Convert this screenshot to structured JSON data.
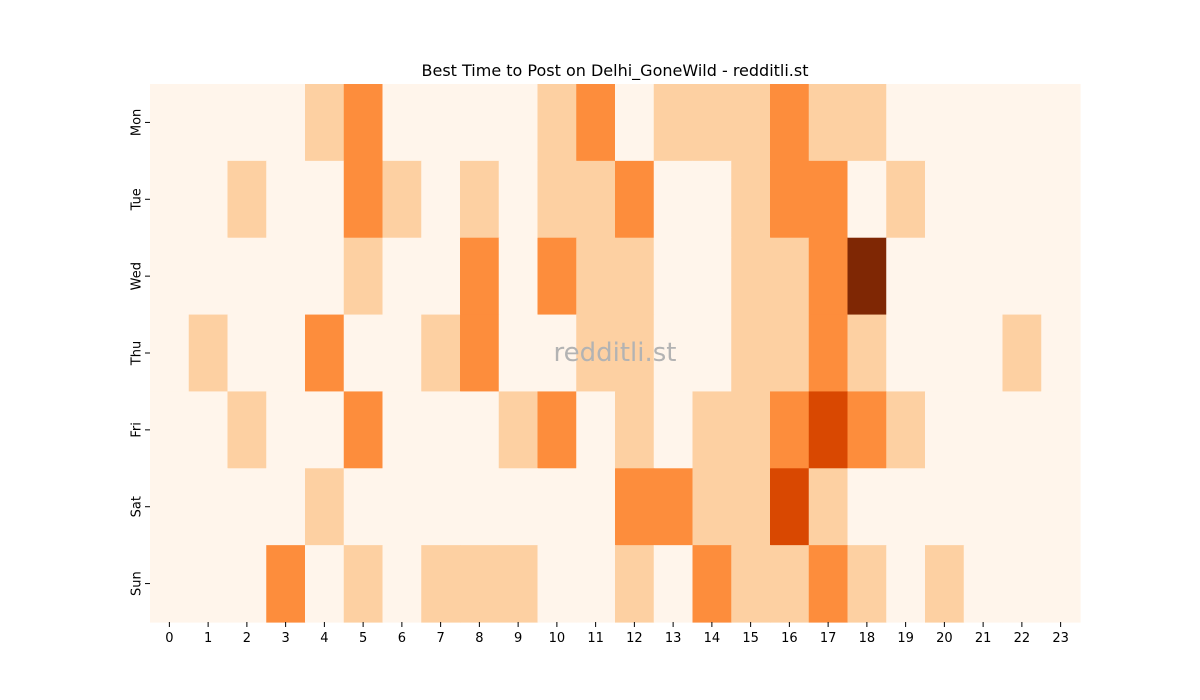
{
  "chart_data": {
    "type": "heatmap",
    "title": "Best Time to Post on Delhi_GoneWild - redditli.st",
    "xlabel": "",
    "ylabel": "",
    "x_labels": [
      "0",
      "1",
      "2",
      "3",
      "4",
      "5",
      "6",
      "7",
      "8",
      "9",
      "10",
      "11",
      "12",
      "13",
      "14",
      "15",
      "16",
      "17",
      "18",
      "19",
      "20",
      "21",
      "22",
      "23"
    ],
    "y_labels": [
      "Mon",
      "Tue",
      "Wed",
      "Thu",
      "Fri",
      "Sat",
      "Sun"
    ],
    "values": [
      [
        0,
        0,
        0,
        0,
        1,
        2,
        0,
        0,
        0,
        0,
        1,
        2,
        0,
        1,
        1,
        1,
        2,
        1,
        1,
        0,
        0,
        0,
        0,
        0
      ],
      [
        0,
        0,
        1,
        0,
        0,
        2,
        1,
        0,
        1,
        0,
        1,
        1,
        2,
        0,
        0,
        1,
        2,
        2,
        0,
        1,
        0,
        0,
        0,
        0
      ],
      [
        0,
        0,
        0,
        0,
        0,
        1,
        0,
        0,
        2,
        0,
        2,
        1,
        1,
        0,
        0,
        1,
        1,
        2,
        5,
        0,
        0,
        0,
        0,
        0
      ],
      [
        0,
        1,
        0,
        0,
        2,
        0,
        0,
        1,
        2,
        0,
        0,
        1,
        1,
        0,
        0,
        1,
        1,
        2,
        1,
        0,
        0,
        0,
        1,
        0
      ],
      [
        0,
        0,
        1,
        0,
        0,
        2,
        0,
        0,
        0,
        1,
        2,
        0,
        1,
        0,
        1,
        1,
        2,
        3,
        2,
        1,
        0,
        0,
        0,
        0
      ],
      [
        0,
        0,
        0,
        0,
        1,
        0,
        0,
        0,
        0,
        0,
        0,
        0,
        2,
        2,
        1,
        1,
        3,
        1,
        0,
        0,
        0,
        0,
        0,
        0
      ],
      [
        0,
        0,
        0,
        2,
        0,
        1,
        0,
        1,
        1,
        1,
        0,
        0,
        1,
        0,
        2,
        1,
        1,
        2,
        1,
        0,
        1,
        0,
        0,
        0
      ]
    ],
    "colormap": [
      "#fff5eb",
      "#fdd0a2",
      "#fd8d3c",
      "#d94801",
      "#a63603",
      "#7f2704"
    ],
    "watermark": "redditli.st"
  }
}
